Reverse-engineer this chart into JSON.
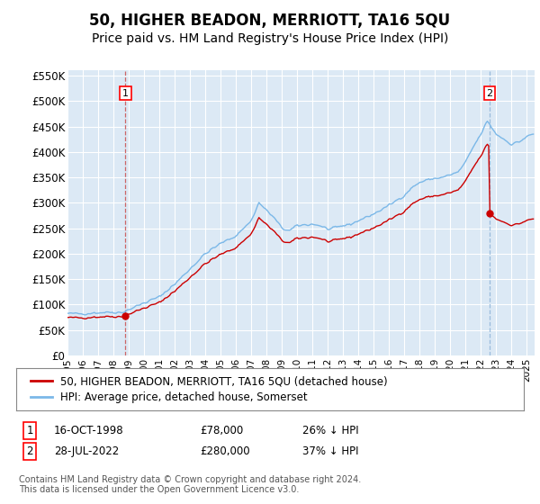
{
  "title": "50, HIGHER BEADON, MERRIOTT, TA16 5QU",
  "subtitle": "Price paid vs. HM Land Registry's House Price Index (HPI)",
  "title_fontsize": 12,
  "subtitle_fontsize": 10,
  "bg_color": "#dce9f5",
  "grid_color": "#ffffff",
  "hpi_color": "#7bb8e8",
  "price_color": "#cc0000",
  "vline1_color": "#cc6666",
  "vline2_color": "#aaccee",
  "ylim": [
    0,
    560000
  ],
  "yticks": [
    0,
    50000,
    100000,
    150000,
    200000,
    250000,
    300000,
    350000,
    400000,
    450000,
    500000,
    550000
  ],
  "legend_label_price": "50, HIGHER BEADON, MERRIOTT, TA16 5QU (detached house)",
  "legend_label_hpi": "HPI: Average price, detached house, Somerset",
  "footer": "Contains HM Land Registry data © Crown copyright and database right 2024.\nThis data is licensed under the Open Government Licence v3.0.",
  "sale1_year": 1998.79,
  "sale1_value": 78000,
  "sale2_year": 2022.57,
  "sale2_value": 280000,
  "xmin": 1995.0,
  "xmax": 2025.5,
  "ann1_date": "16-OCT-1998",
  "ann1_price": "£78,000",
  "ann1_hpi": "26% ↓ HPI",
  "ann2_date": "28-JUL-2022",
  "ann2_price": "£280,000",
  "ann2_hpi": "37% ↓ HPI"
}
